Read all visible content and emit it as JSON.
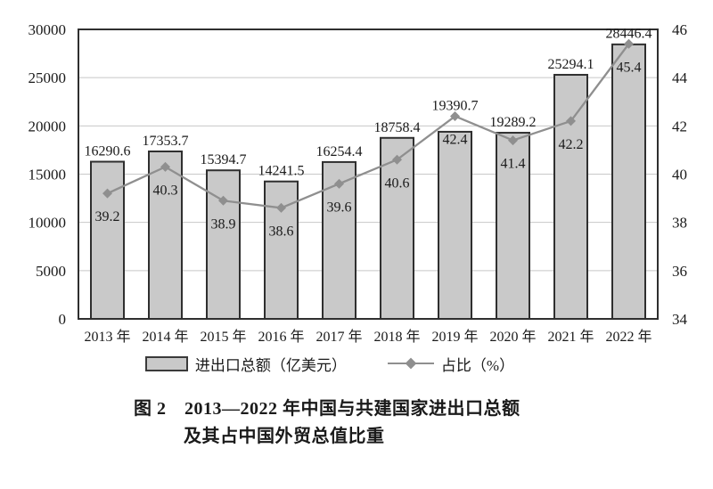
{
  "chart_data": {
    "type": "bar",
    "categories": [
      "2013 年",
      "2014 年",
      "2015 年",
      "2016 年",
      "2017 年",
      "2018 年",
      "2019 年",
      "2020 年",
      "2021 年",
      "2022 年"
    ],
    "series": [
      {
        "name": "进出口总额（亿美元）",
        "type": "bar",
        "axis": "left",
        "values": [
          16290.6,
          17353.7,
          15394.7,
          14241.5,
          16254.4,
          18758.4,
          19390.7,
          19289.2,
          25294.1,
          28446.4
        ]
      },
      {
        "name": "占比（%）",
        "type": "line",
        "axis": "right",
        "values": [
          39.2,
          40.3,
          38.9,
          38.6,
          39.6,
          40.6,
          42.4,
          41.4,
          42.2,
          45.4
        ]
      }
    ],
    "left_axis": {
      "min": 0,
      "max": 30000,
      "step": 5000
    },
    "right_axis": {
      "min": 34,
      "max": 46,
      "step": 2
    },
    "grid": true,
    "legend_position": "bottom",
    "title": "图 2　2013—2022 年中国与共建国家进出口总额及其占中国外贸总值比重"
  },
  "legend": {
    "bar_label": "进出口总额（亿美元）",
    "line_label": "占比（%）"
  },
  "caption": {
    "line1": "图 2　2013—2022 年中国与共建国家进出口总额",
    "line2": "及其占中国外贸总值比重"
  },
  "colors": {
    "bar_fill": "#c9c9c9",
    "bar_border": "#2f2f2f",
    "line": "#8f8f8f",
    "marker": "#8f8f8f",
    "grid": "#c8c8c8",
    "plot_border": "#2f2f2f",
    "text": "#1a1a1a"
  }
}
